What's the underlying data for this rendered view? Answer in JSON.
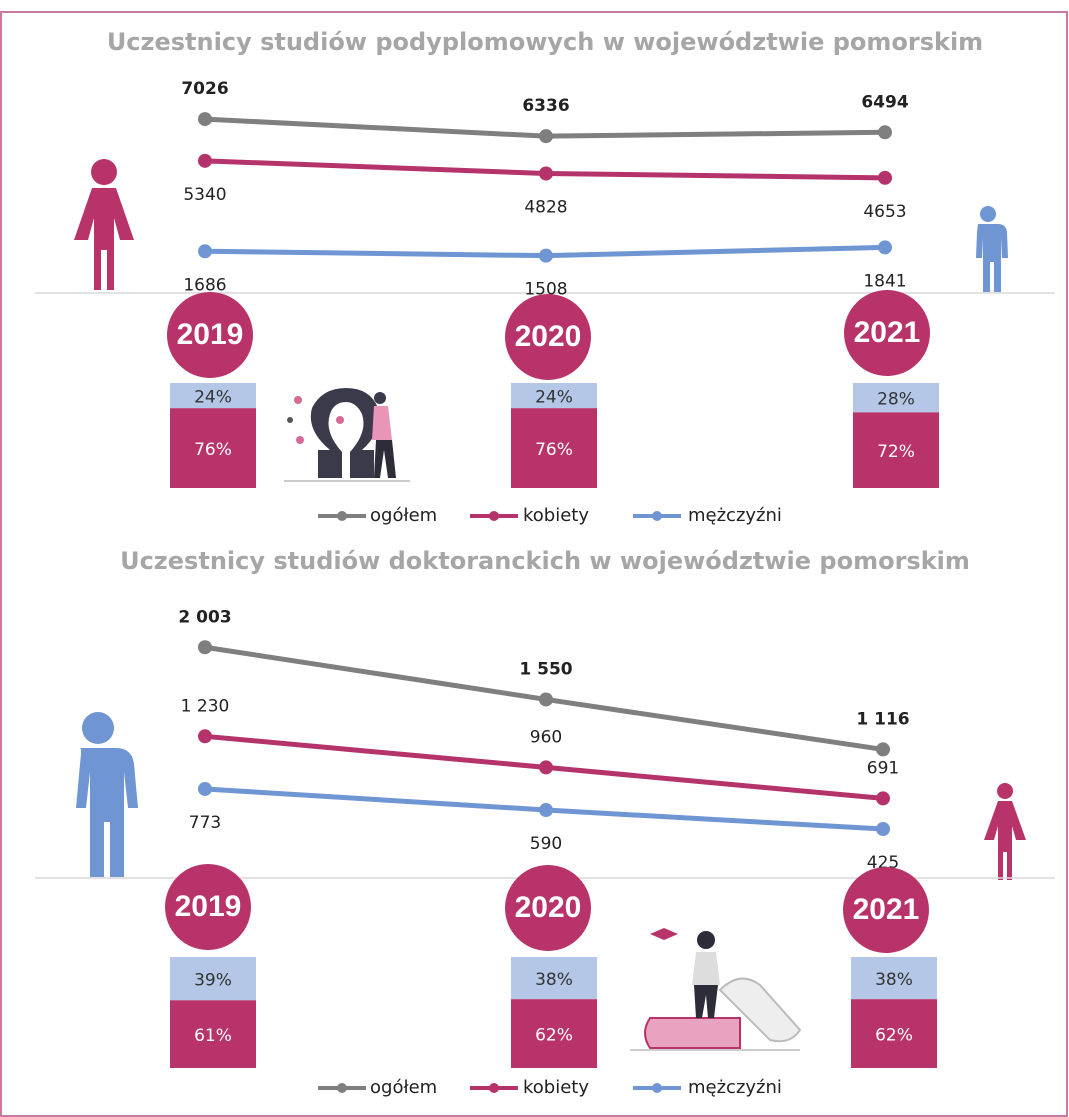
{
  "chart_data": [
    {
      "type": "line",
      "title": "Uczestnicy studiów podyplomowych w województwie pomorskim",
      "categories": [
        "2019",
        "2020",
        "2021"
      ],
      "ylim": [
        0,
        8000
      ],
      "series": [
        {
          "name": "ogółem",
          "color": "#7f7f7f",
          "values": [
            7026,
            6336,
            6494
          ],
          "label_position": "above",
          "bold": true
        },
        {
          "name": "kobiety",
          "color": "#b5336b",
          "values": [
            5340,
            4828,
            4653
          ],
          "label_position": "below",
          "bold": false
        },
        {
          "name": "mężczyźni",
          "color": "#6f95d3",
          "values": [
            1686,
            1508,
            1841
          ],
          "label_position": "below",
          "bold": false
        }
      ],
      "shares": [
        {
          "color": "#b4c7e7",
          "text_color": "#333333",
          "values": [
            24,
            24,
            28
          ],
          "value_labels": [
            "24%",
            "24%",
            "28%"
          ]
        },
        {
          "color": "#b8336a",
          "text_color": "#ffffff",
          "values": [
            76,
            76,
            72
          ],
          "value_labels": [
            "76%",
            "76%",
            "72%"
          ]
        }
      ]
    },
    {
      "type": "line",
      "title": "Uczestnicy studiów doktoranckich w województwie pomorskim",
      "categories": [
        "2019",
        "2020",
        "2021"
      ],
      "ylim": [
        0,
        2500
      ],
      "series": [
        {
          "name": "ogółem",
          "color": "#7f7f7f",
          "values": [
            2003,
            1550,
            1116
          ],
          "value_labels": [
            "2 003",
            "1 550",
            "1 116"
          ],
          "label_position": "above",
          "bold": true
        },
        {
          "name": "kobiety",
          "color": "#b5336b",
          "values": [
            1230,
            960,
            691
          ],
          "value_labels": [
            "1 230",
            "960",
            "691"
          ],
          "label_position": "above",
          "bold": false
        },
        {
          "name": "mężczyźni",
          "color": "#6f95d3",
          "values": [
            773,
            590,
            425
          ],
          "label_position": "below",
          "bold": false
        }
      ],
      "shares": [
        {
          "color": "#b4c7e7",
          "text_color": "#333333",
          "values": [
            39,
            38,
            38
          ],
          "value_labels": [
            "39%",
            "38%",
            "38%"
          ]
        },
        {
          "color": "#b8336a",
          "text_color": "#ffffff",
          "values": [
            61,
            62,
            62
          ],
          "value_labels": [
            "61%",
            "62%",
            "62%"
          ]
        }
      ]
    }
  ]
}
